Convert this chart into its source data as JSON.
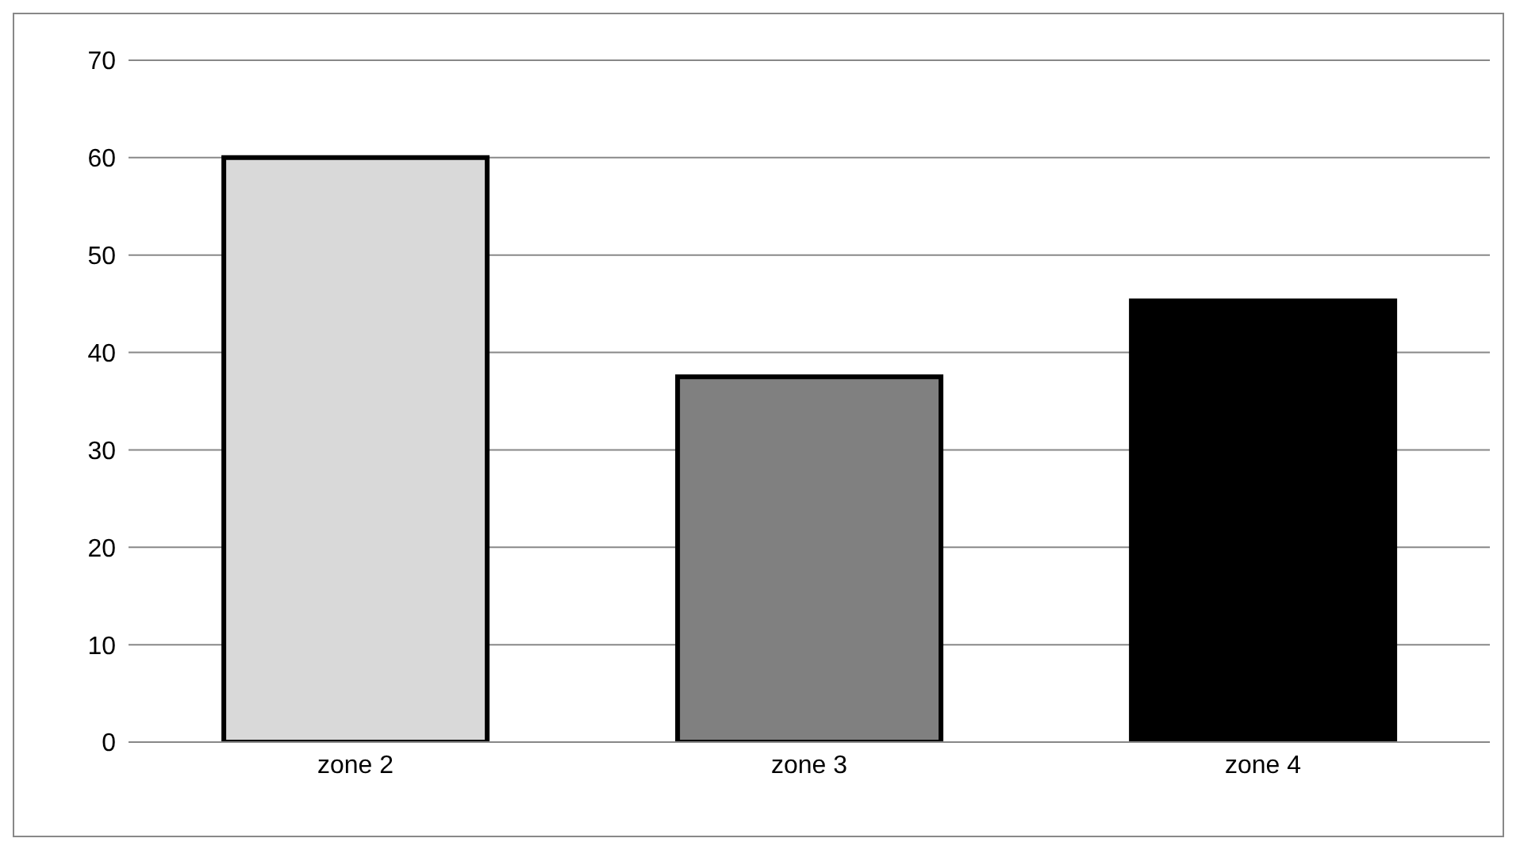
{
  "chart_data": {
    "type": "bar",
    "categories": [
      "zone 2",
      "zone 3",
      "zone 4"
    ],
    "values": [
      60,
      37.5,
      45.3
    ],
    "colors": [
      "#d9d9d9",
      "#808080",
      "#000000"
    ],
    "ylim": [
      0,
      70
    ],
    "yticks": [
      0,
      10,
      20,
      30,
      40,
      50,
      60,
      70
    ],
    "grid": "y"
  }
}
